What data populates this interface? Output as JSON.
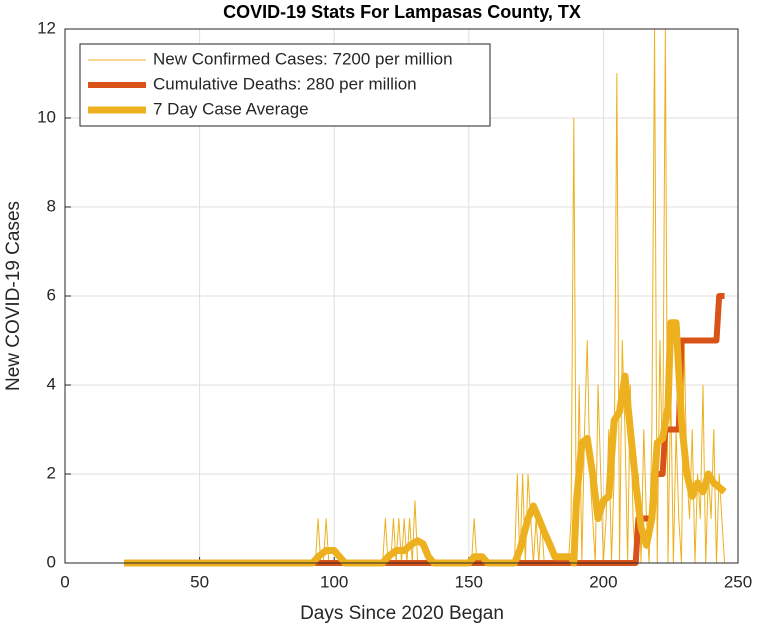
{
  "chart_data": {
    "type": "line",
    "title": "COVID-19 Stats For Lampasas County, TX",
    "xlabel": "Days Since 2020 Began",
    "ylabel": "New COVID-19 Cases",
    "xlim": [
      0,
      250
    ],
    "xticks": [
      0,
      50,
      100,
      150,
      200,
      250
    ],
    "ylim": [
      0,
      12
    ],
    "yticks": [
      0,
      2,
      4,
      6,
      8,
      10,
      12
    ],
    "grid": true,
    "legend": "upper left",
    "series": [
      {
        "name": "New Confirmed Cases: 7200 per million",
        "color": "#EDB120",
        "x": [
          22,
          93,
          94,
          95,
          96,
          97,
          98,
          118,
          119,
          120,
          121,
          122,
          123,
          124,
          125,
          126,
          127,
          128,
          129,
          130,
          131,
          132,
          151,
          152,
          153,
          167,
          168,
          169,
          170,
          171,
          172,
          173,
          174,
          175,
          176,
          177,
          178,
          186,
          187,
          188,
          189,
          190,
          191,
          192,
          193,
          194,
          195,
          196,
          197,
          198,
          199,
          200,
          201,
          202,
          203,
          204,
          205,
          206,
          207,
          208,
          209,
          210,
          211,
          212,
          213,
          214,
          215,
          216,
          217,
          218,
          219,
          220,
          221,
          222,
          223,
          224,
          225,
          226,
          227,
          228,
          229,
          230,
          231,
          232,
          233,
          234,
          235,
          236,
          237,
          238,
          239,
          240,
          241,
          242,
          243,
          244,
          245
        ],
        "values": [
          0,
          0,
          1,
          0,
          0,
          1,
          0,
          0,
          1,
          0,
          0,
          1,
          0,
          1,
          0,
          1,
          0,
          1,
          0,
          1.4,
          0,
          0,
          0,
          1,
          0,
          0,
          2,
          0,
          2,
          0,
          2,
          1,
          0,
          1,
          0,
          1,
          0,
          0,
          0,
          1,
          10,
          0,
          4,
          0,
          3,
          5,
          2,
          1,
          0,
          4,
          2,
          0,
          1,
          3,
          0,
          2,
          11,
          0,
          5,
          3,
          0,
          4,
          1,
          0,
          2,
          0,
          3,
          1,
          0,
          3,
          12,
          0,
          5,
          2,
          12,
          0,
          4,
          0,
          3,
          1,
          0,
          5,
          2,
          1,
          3,
          0,
          2,
          1,
          4,
          0,
          2,
          1,
          3,
          0,
          2,
          1,
          0
        ]
      },
      {
        "name": "Cumulative Deaths: 280 per million",
        "color": "#D95319",
        "x": [
          22,
          212,
          213,
          218,
          219,
          222,
          223,
          228,
          229,
          242,
          243,
          245
        ],
        "values": [
          0,
          0,
          1,
          1,
          2,
          2,
          3,
          3,
          5,
          5,
          6,
          6
        ]
      },
      {
        "name": "7 Day Case Average",
        "color": "#EDB120",
        "x": [
          22,
          92,
          94,
          97,
          100,
          102,
          104,
          118,
          120,
          123,
          126,
          129,
          131,
          133,
          135,
          137,
          150,
          152,
          155,
          157,
          167,
          169,
          172,
          174,
          176,
          178,
          180,
          182,
          184,
          188,
          189,
          190,
          192,
          194,
          196,
          198,
          200,
          202,
          204,
          206,
          208,
          210,
          212,
          214,
          216,
          218,
          220,
          222,
          224,
          225,
          227,
          229,
          231,
          233,
          235,
          237,
          239,
          241,
          243,
          245
        ],
        "values": [
          0,
          0,
          0.14,
          0.28,
          0.28,
          0.14,
          0,
          0,
          0.14,
          0.28,
          0.28,
          0.43,
          0.5,
          0.43,
          0.14,
          0,
          0,
          0.14,
          0.14,
          0,
          0,
          0.3,
          1.0,
          1.28,
          1.0,
          0.7,
          0.43,
          0.14,
          0.14,
          0.14,
          0,
          1.4,
          2.7,
          2.8,
          2.0,
          1.0,
          1.4,
          1.5,
          3.2,
          3.4,
          4.2,
          3.0,
          1.8,
          0.8,
          0.4,
          1.0,
          2.7,
          2.8,
          3.5,
          5.4,
          5.4,
          3.2,
          2.0,
          1.5,
          1.8,
          1.6,
          2.0,
          1.8,
          1.7,
          1.6
        ]
      }
    ]
  }
}
